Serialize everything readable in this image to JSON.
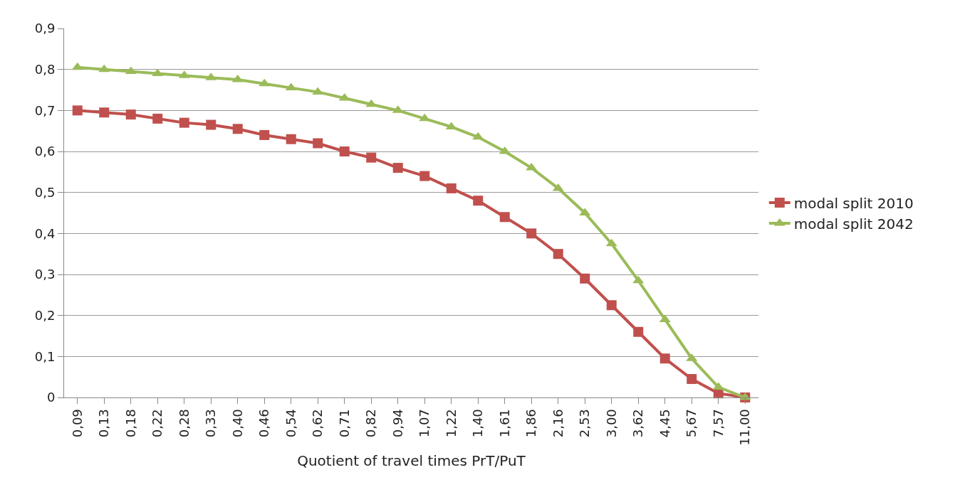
{
  "chart_data": {
    "type": "line",
    "xlabel": "Quotient of travel times PrT/PuT",
    "categories": [
      "0,09",
      "0,13",
      "0,18",
      "0,22",
      "0,28",
      "0,33",
      "0,40",
      "0,46",
      "0,54",
      "0,62",
      "0,71",
      "0,82",
      "0,94",
      "1,07",
      "1,22",
      "1,40",
      "1,61",
      "1,86",
      "2,16",
      "2,53",
      "3,00",
      "3,62",
      "4,45",
      "5,67",
      "7,57",
      "11,00"
    ],
    "series": [
      {
        "name": "modal split 2010",
        "color": "#c0504d",
        "marker": "square",
        "values": [
          0.7,
          0.695,
          0.69,
          0.68,
          0.67,
          0.665,
          0.655,
          0.64,
          0.63,
          0.62,
          0.6,
          0.585,
          0.56,
          0.54,
          0.51,
          0.48,
          0.44,
          0.4,
          0.35,
          0.29,
          0.225,
          0.16,
          0.095,
          0.045,
          0.01,
          0.0
        ]
      },
      {
        "name": "modal split 2042",
        "color": "#9bbb59",
        "marker": "triangle",
        "values": [
          0.805,
          0.8,
          0.795,
          0.79,
          0.785,
          0.78,
          0.775,
          0.765,
          0.755,
          0.745,
          0.73,
          0.715,
          0.7,
          0.68,
          0.66,
          0.635,
          0.6,
          0.56,
          0.51,
          0.45,
          0.375,
          0.285,
          0.19,
          0.095,
          0.025,
          0.0
        ]
      }
    ],
    "ylim": [
      0,
      0.9
    ],
    "yticks": [
      {
        "value": 0,
        "label": "0"
      },
      {
        "value": 0.1,
        "label": "0,1"
      },
      {
        "value": 0.2,
        "label": "0,2"
      },
      {
        "value": 0.3,
        "label": "0,3"
      },
      {
        "value": 0.4,
        "label": "0,4"
      },
      {
        "value": 0.5,
        "label": "0,5"
      },
      {
        "value": 0.6,
        "label": "0,6"
      },
      {
        "value": 0.7,
        "label": "0,7"
      },
      {
        "value": 0.8,
        "label": "0,8"
      },
      {
        "value": 0.9,
        "label": "0,9"
      }
    ],
    "grid": "y",
    "legend": "right",
    "line_style": "solid"
  }
}
